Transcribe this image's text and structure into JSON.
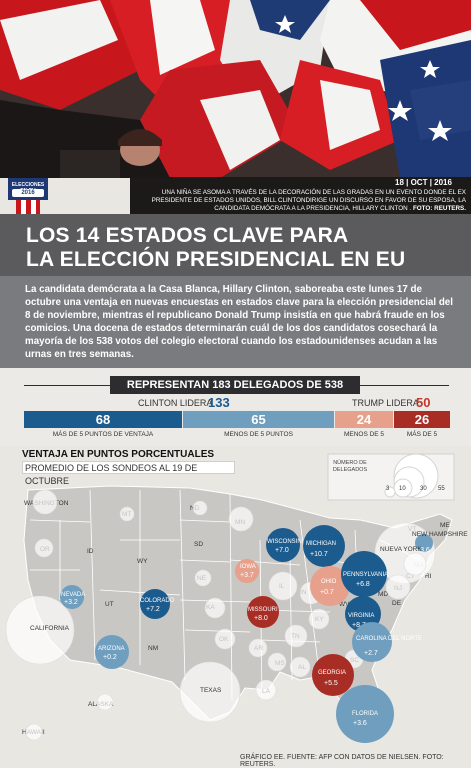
{
  "photo": {
    "date": "18 | OCT | 2016",
    "caption": "UNA NIÑA SE ASOMA A TRAVÉS DE LA DECORACIÓN DE LAS GRADAS EN UN EVENTO DONDE EL EX PRESIDENTE DE ESTADOS UNIDOS, BILL CLINTONDIRIGE UN DISCURSO EN FAVOR DE SU ESPOSA, LA CANDIDATA DEMÓCRATA A LA PRESIDENCIA, HILLARY CLINTON .",
    "credit": "FOTO: REUTERS."
  },
  "badge": {
    "line1": "ELECCIONES EN EU",
    "line2": "2016"
  },
  "headline": {
    "line1": "LOS 14 ESTADOS CLAVE PARA",
    "line2": "LA ELECCIÓN PRESIDENCIAL EN EU"
  },
  "intro": "La candidata demócrata a la Casa Blanca, Hillary Clinton, saboreaba este lunes 17 de octubre una ventaja en nuevas encuestas en estados clave para la elección presidencial del 8 de noviembre, mientras el republicano Donald Trump insistía en que habrá fraude en los comicios. Una docena de estados determinarán cuál de los dos candidatos cosechará la mayoría de los 538 votos del colegio electoral cuando los estadounidenses acudan a las urnas en tres semanas.",
  "delegates": {
    "header": "REPRESENTAN 183 DELEGADOS DE 538",
    "clinton_label": "CLINTON LIDERA",
    "clinton_total": "133",
    "trump_label": "TRUMP LIDERA",
    "trump_total": "50",
    "segments": [
      {
        "value": "68",
        "caption": "MÁS DE 5 PUNTOS DE VENTAJA",
        "color": "#1c5b8e"
      },
      {
        "value": "65",
        "caption": "MENOS DE 5 PUNTOS",
        "color": "#6f9ebf"
      },
      {
        "value": "24",
        "caption": "MENOS DE 5",
        "color": "#e7a08b"
      },
      {
        "value": "26",
        "caption": "MÁS DE 5",
        "color": "#a82d25"
      }
    ]
  },
  "map": {
    "title": "VENTAJA EN PUNTOS PORCENTUALES",
    "subtitle": "PROMEDIO DE LOS SONDEOS AL 19 DE OCTUBRE",
    "legend_title": "NÚMERO DE DELEGADOS",
    "legend_values": [
      "3",
      "10",
      "30",
      "55"
    ],
    "states": {
      "WASHINGTON": "WASHINGTON",
      "OR": "OR",
      "CALIFORNIA": "CALIFORNIA",
      "ID": "ID",
      "MT": "MT",
      "WY": "WY",
      "UT": "UT",
      "ND": "ND",
      "SD": "SD",
      "NE": "NE",
      "KA": "KA",
      "OK": "OK",
      "TEXAS": "TEXAS",
      "NM": "NM",
      "MN": "MN",
      "IL": "IL",
      "IN": "IN",
      "KY": "KY",
      "TN": "TN",
      "AR": "AR",
      "MS": "MS",
      "AL": "AL",
      "LA": "LA",
      "SC": "SC",
      "WV": "WV",
      "MD": "MD",
      "DE": "DE",
      "NJ": "NJ",
      "CT": "CT",
      "RI": "RI",
      "MA": "MA",
      "VT": "VT",
      "ME": "ME",
      "NUEVA_YORK": "NUEVA YORK",
      "ALASKA": "ALASKA",
      "HAWAII": "HAWAII"
    },
    "key_states": [
      {
        "name": "NEVADA",
        "lead": "+3.2"
      },
      {
        "name": "ARIZONA",
        "lead": "+0.2"
      },
      {
        "name": "COLORADO",
        "lead": "+7.2"
      },
      {
        "name": "IOWA",
        "lead": "+3.7"
      },
      {
        "name": "MISSOURI",
        "lead": "+8.0"
      },
      {
        "name": "WISCONSIN",
        "lead": "+7.0"
      },
      {
        "name": "MICHIGAN",
        "lead": "+10.7"
      },
      {
        "name": "OHIO",
        "lead": "+0.7"
      },
      {
        "name": "PENNSYLVANIA",
        "lead": "+6.8"
      },
      {
        "name": "VIRGINIA",
        "lead": "+8.7"
      },
      {
        "name": "CAROLINA DEL NORTE",
        "lead": "+2.7"
      },
      {
        "name": "GEORGIA",
        "lead": "+5.5"
      },
      {
        "name": "FLORIDA",
        "lead": "+3.6"
      },
      {
        "name": "NEW HAMPSHIRE",
        "lead": "+3.6"
      }
    ],
    "colors": {
      "clinton_strong": "#1c5b8e",
      "clinton_lean": "#6f9ebf",
      "trump_lean": "#e7a08b",
      "trump_strong": "#a82d25"
    }
  },
  "footer_credit": "GRÁFICO EE. FUENTE: AFP CON DATOS DE NIELSEN. FOTO: REUTERS."
}
